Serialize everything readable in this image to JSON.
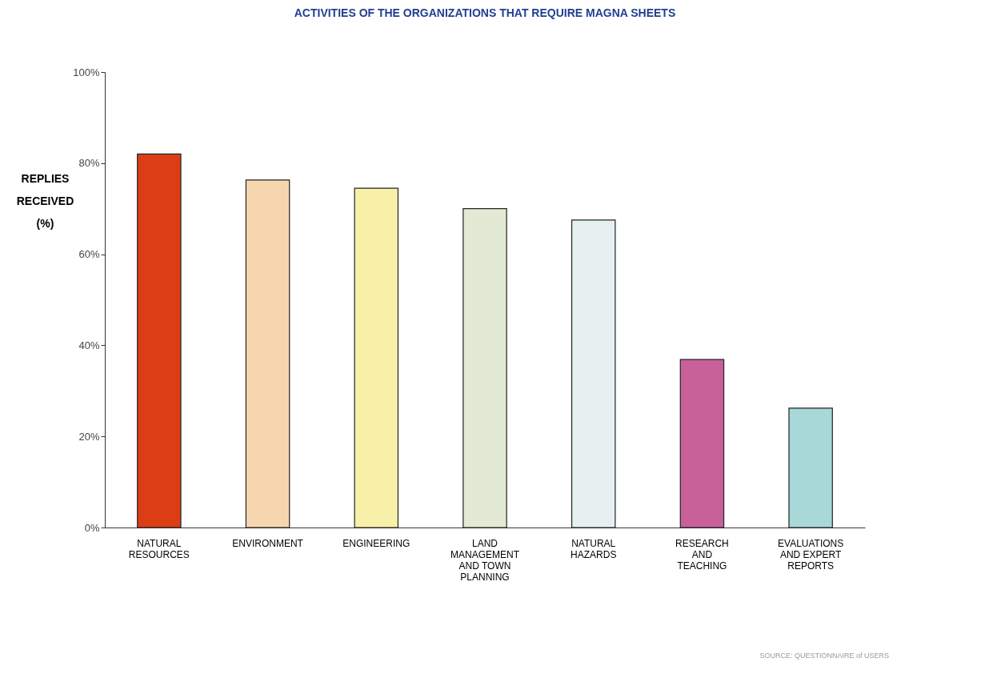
{
  "chart_data": {
    "type": "bar",
    "title": "ACTIVITIES OF THE ORGANIZATIONS THAT REQUIRE MAGNA SHEETS",
    "ylabel": "REPLIES\nRECEIVED\n(%)",
    "categories": [
      "NATURAL\nRESOURCES",
      "ENVIRONMENT",
      "ENGINEERING",
      "LAND\nMANAGEMENT\nAND TOWN\nPLANNING",
      "NATURAL\nHAZARDS",
      "RESEARCH\nAND\nTEACHING",
      "EVALUATIONS\nAND EXPERT\nREPORTS"
    ],
    "values": [
      82,
      76.3,
      74.5,
      70,
      67.5,
      36.9,
      26.2
    ],
    "colors": [
      "#dc3d14",
      "#f6d6ae",
      "#f8f0a8",
      "#e2ead6",
      "#e6f0f0",
      "#c8609a",
      "#a8d8d8"
    ],
    "ylim": [
      0,
      100
    ],
    "yticks": [
      {
        "value": 0,
        "label": "0%"
      },
      {
        "value": 20,
        "label": "20%"
      },
      {
        "value": 40,
        "label": "40%"
      },
      {
        "value": 60,
        "label": "60%"
      },
      {
        "value": 80,
        "label": "80%"
      },
      {
        "value": 100,
        "label": "100%"
      }
    ],
    "grid": false,
    "annotations": [
      "SOURCE: QUESTIONNAIRE of USERS"
    ]
  }
}
